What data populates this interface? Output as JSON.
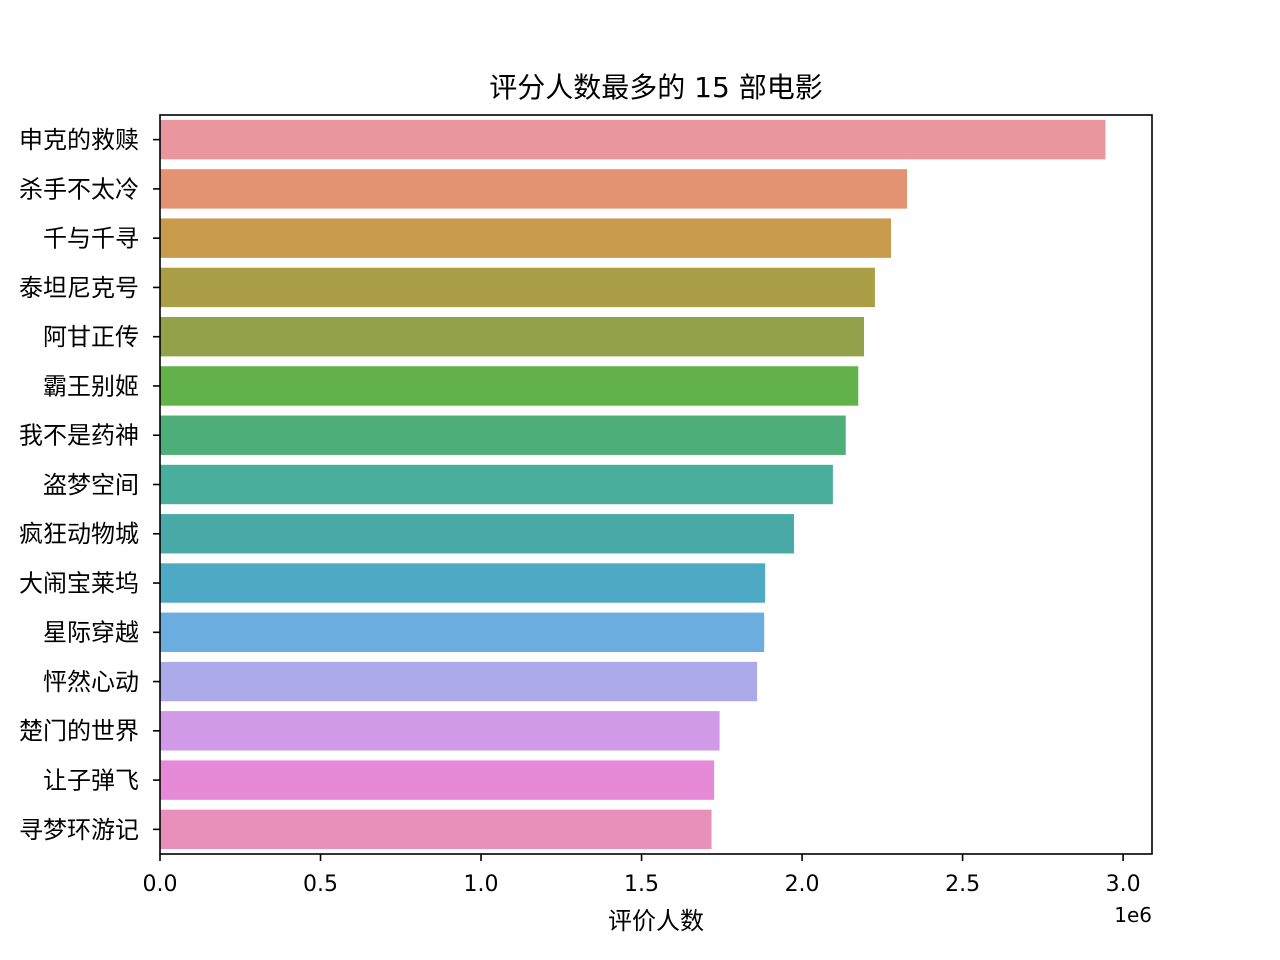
{
  "chart_data": {
    "type": "bar",
    "orientation": "horizontal",
    "title": "评分人数最多的 15 部电影",
    "xlabel": "评价人数",
    "ylabel": "",
    "x_offset_label": "1e6",
    "x_scale": 1000000,
    "xlim": [
      0,
      3.09
    ],
    "x_ticks": [
      0.0,
      0.5,
      1.0,
      1.5,
      2.0,
      2.5,
      3.0
    ],
    "x_tick_labels": [
      "0.0",
      "0.5",
      "1.0",
      "1.5",
      "2.0",
      "2.5",
      "3.0"
    ],
    "grid": false,
    "categories": [
      "申克的救赎",
      "杀手不太冷",
      "千与千寻",
      "泰坦尼克号",
      "阿甘正传",
      "霸王别姬",
      "我不是药神",
      "盗梦空间",
      "疯狂动物城",
      "大闹宝莱坞",
      "星际穿越",
      "怦然心动",
      "楚门的世界",
      "让子弹飞",
      "寻梦环游记"
    ],
    "values": [
      2945000,
      2327000,
      2277000,
      2227000,
      2193000,
      2175000,
      2136000,
      2096000,
      1975000,
      1885000,
      1882000,
      1860000,
      1743000,
      1726000,
      1718000
    ],
    "colors": [
      "#e9969f",
      "#e39371",
      "#c89a4b",
      "#aa9f47",
      "#93a24a",
      "#63b149",
      "#4dae7a",
      "#49ae9b",
      "#4aaaa8",
      "#4eaac4",
      "#6badde",
      "#adaaea",
      "#d09ae6",
      "#e68ad8",
      "#e88fba"
    ]
  }
}
